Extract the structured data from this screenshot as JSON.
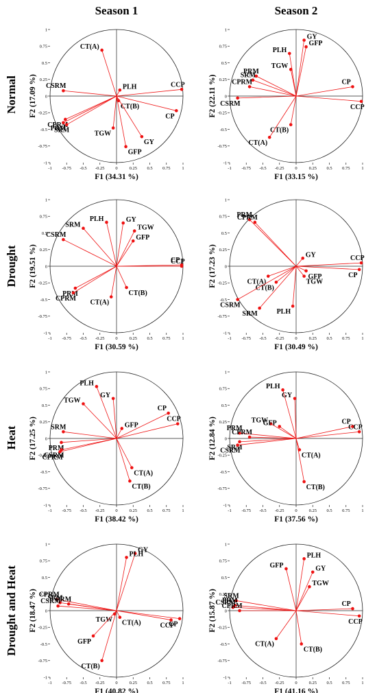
{
  "columns": [
    "Season 1",
    "Season 2"
  ],
  "rows": [
    "Normal",
    "Drought",
    "Heat",
    "Drought and Heat"
  ],
  "colors": {
    "vector": "#ee1111",
    "axis": "#222222"
  },
  "ticks": [
    "-1",
    "-0.75",
    "-0.5",
    "-0.25",
    "0",
    "0.25",
    "0.5",
    "0.75",
    "1"
  ],
  "chart_data": [
    {
      "type": "scatter",
      "row": "Normal",
      "season": "Season 1",
      "xlabel": "F1 (34.31 %)",
      "ylabel": "F2 (17.09 %)",
      "xlim": [
        -1,
        1
      ],
      "ylim": [
        -1,
        1
      ],
      "points": [
        {
          "label": "CT(A)",
          "x": -0.22,
          "y": 0.69
        },
        {
          "label": "PLH",
          "x": 0.05,
          "y": 0.09
        },
        {
          "label": "CCP",
          "x": 0.98,
          "y": 0.1
        },
        {
          "label": "CSRM",
          "x": -0.8,
          "y": 0.08
        },
        {
          "label": "CT(B)",
          "x": 0.03,
          "y": -0.07
        },
        {
          "label": "CP",
          "x": 0.9,
          "y": -0.22
        },
        {
          "label": "CPRM",
          "x": -0.77,
          "y": -0.35
        },
        {
          "label": "PRM",
          "x": -0.8,
          "y": -0.4
        },
        {
          "label": "SRM",
          "x": -0.75,
          "y": -0.43
        },
        {
          "label": "TGW",
          "x": -0.05,
          "y": -0.48
        },
        {
          "label": "GY",
          "x": 0.38,
          "y": -0.61
        },
        {
          "label": "GFP",
          "x": 0.14,
          "y": -0.76
        }
      ]
    },
    {
      "type": "scatter",
      "row": "Normal",
      "season": "Season 2",
      "xlabel": "F1 (33.15 %)",
      "ylabel": "F2 (22.11 %)",
      "xlim": [
        -1,
        1
      ],
      "ylim": [
        -1,
        1
      ],
      "points": [
        {
          "label": "GY",
          "x": 0.12,
          "y": 0.84
        },
        {
          "label": "GFP",
          "x": 0.15,
          "y": 0.74
        },
        {
          "label": "PLH",
          "x": -0.1,
          "y": 0.64
        },
        {
          "label": "TGW",
          "x": -0.08,
          "y": 0.4
        },
        {
          "label": "PRM",
          "x": -0.6,
          "y": 0.3
        },
        {
          "label": "SRM",
          "x": -0.65,
          "y": 0.24
        },
        {
          "label": "CPRM",
          "x": -0.7,
          "y": 0.14
        },
        {
          "label": "CSRM",
          "x": -0.88,
          "y": -0.03
        },
        {
          "label": "CP",
          "x": 0.85,
          "y": 0.14
        },
        {
          "label": "CCP",
          "x": 0.98,
          "y": -0.08
        },
        {
          "label": "CT(B)",
          "x": -0.08,
          "y": -0.43
        },
        {
          "label": "CT(A)",
          "x": -0.4,
          "y": -0.62
        }
      ]
    },
    {
      "type": "scatter",
      "row": "Drought",
      "season": "Season 1",
      "xlabel": "F1 (30.59 %)",
      "ylabel": "F2 (19.51 %)",
      "xlim": [
        -1,
        1
      ],
      "ylim": [
        -1,
        1
      ],
      "points": [
        {
          "label": "PLH",
          "x": -0.15,
          "y": 0.66
        },
        {
          "label": "GY",
          "x": 0.1,
          "y": 0.65
        },
        {
          "label": "SRM",
          "x": -0.5,
          "y": 0.57
        },
        {
          "label": "TGW",
          "x": 0.27,
          "y": 0.53
        },
        {
          "label": "CSRM",
          "x": -0.8,
          "y": 0.4
        },
        {
          "label": "GFP",
          "x": 0.25,
          "y": 0.38
        },
        {
          "label": "CP",
          "x": 0.98,
          "y": 0.02
        },
        {
          "label": "CCP",
          "x": 0.98,
          "y": 0.0
        },
        {
          "label": "PRM",
          "x": -0.62,
          "y": -0.33
        },
        {
          "label": "CPRM",
          "x": -0.65,
          "y": -0.4
        },
        {
          "label": "CT(B)",
          "x": 0.15,
          "y": -0.32
        },
        {
          "label": "CT(A)",
          "x": -0.08,
          "y": -0.46
        }
      ]
    },
    {
      "type": "scatter",
      "row": "Drought",
      "season": "Season 2",
      "xlabel": "F1 (30.49 %)",
      "ylabel": "F2 (17.23 %)",
      "xlim": [
        -1,
        1
      ],
      "ylim": [
        -1,
        1
      ],
      "points": [
        {
          "label": "PRM",
          "x": -0.7,
          "y": 0.7
        },
        {
          "label": "CPRM",
          "x": -0.62,
          "y": 0.66
        },
        {
          "label": "GY",
          "x": 0.1,
          "y": 0.12
        },
        {
          "label": "CCP",
          "x": 0.98,
          "y": 0.05
        },
        {
          "label": "CP",
          "x": 0.95,
          "y": -0.05
        },
        {
          "label": "CT(A)",
          "x": -0.42,
          "y": -0.15
        },
        {
          "label": "CT(B)",
          "x": -0.3,
          "y": -0.24
        },
        {
          "label": "GFP",
          "x": 0.15,
          "y": -0.07
        },
        {
          "label": "TGW",
          "x": 0.12,
          "y": -0.15
        },
        {
          "label": "CSRM",
          "x": -0.88,
          "y": -0.5
        },
        {
          "label": "SRM",
          "x": -0.55,
          "y": -0.63
        },
        {
          "label": "PLH",
          "x": -0.05,
          "y": -0.6
        }
      ]
    },
    {
      "type": "scatter",
      "row": "Heat",
      "season": "Season 1",
      "xlabel": "F1 (38.42 %)",
      "ylabel": "F2 (17.25 %)",
      "xlim": [
        -1,
        1
      ],
      "ylim": [
        -1,
        1
      ],
      "points": [
        {
          "label": "PLH",
          "x": -0.3,
          "y": 0.78
        },
        {
          "label": "TGW",
          "x": -0.5,
          "y": 0.52
        },
        {
          "label": "GY",
          "x": -0.05,
          "y": 0.6
        },
        {
          "label": "CP",
          "x": 0.78,
          "y": 0.38
        },
        {
          "label": "CCP",
          "x": 0.92,
          "y": 0.22
        },
        {
          "label": "GFP",
          "x": 0.08,
          "y": 0.15
        },
        {
          "label": "SRM",
          "x": -0.8,
          "y": 0.1
        },
        {
          "label": "PRM",
          "x": -0.83,
          "y": -0.06
        },
        {
          "label": "CSRM",
          "x": -0.83,
          "y": -0.17
        },
        {
          "label": "CPRM",
          "x": -0.85,
          "y": -0.2
        },
        {
          "label": "CT(A)",
          "x": 0.23,
          "y": -0.44
        },
        {
          "label": "CT(B)",
          "x": 0.2,
          "y": -0.64
        }
      ]
    },
    {
      "type": "scatter",
      "row": "Heat",
      "season": "Season 2",
      "xlabel": "F1 (37.56 %)",
      "ylabel": "F2 (12.84 %)",
      "xlim": [
        -1,
        1
      ],
      "ylim": [
        -1,
        1
      ],
      "points": [
        {
          "label": "PLH",
          "x": -0.2,
          "y": 0.73
        },
        {
          "label": "GY",
          "x": -0.02,
          "y": 0.6
        },
        {
          "label": "TGW",
          "x": -0.38,
          "y": 0.22
        },
        {
          "label": "GFP",
          "x": -0.25,
          "y": 0.18
        },
        {
          "label": "PRM",
          "x": -0.85,
          "y": 0.08
        },
        {
          "label": "CPRM",
          "x": -0.7,
          "y": 0.02
        },
        {
          "label": "SRM",
          "x": -0.85,
          "y": -0.05
        },
        {
          "label": "CSRM",
          "x": -0.88,
          "y": -0.1
        },
        {
          "label": "CP",
          "x": 0.85,
          "y": 0.18
        },
        {
          "label": "CCP",
          "x": 0.95,
          "y": 0.1
        },
        {
          "label": "CT(A)",
          "x": 0.05,
          "y": -0.17
        },
        {
          "label": "CT(B)",
          "x": 0.12,
          "y": -0.65
        }
      ]
    },
    {
      "type": "scatter",
      "row": "Drought and Heat",
      "season": "Season 1",
      "xlabel": "F1 (40.82 %)",
      "ylabel": "F2 (18.47 %)",
      "xlim": [
        -1,
        1
      ],
      "ylim": [
        -1,
        1
      ],
      "points": [
        {
          "label": "GY",
          "x": 0.28,
          "y": 0.86
        },
        {
          "label": "PLH",
          "x": 0.15,
          "y": 0.8
        },
        {
          "label": "CPRM",
          "x": -0.9,
          "y": 0.17
        },
        {
          "label": "PRM",
          "x": -0.72,
          "y": 0.1
        },
        {
          "label": "SRM",
          "x": -0.85,
          "y": 0.12
        },
        {
          "label": "CSRM",
          "x": -0.88,
          "y": 0.07
        },
        {
          "label": "TGW",
          "x": -0.03,
          "y": -0.05
        },
        {
          "label": "CT(A)",
          "x": 0.05,
          "y": -0.1
        },
        {
          "label": "CP",
          "x": 0.95,
          "y": -0.12
        },
        {
          "label": "CCP",
          "x": 0.82,
          "y": -0.14
        },
        {
          "label": "GFP",
          "x": -0.35,
          "y": -0.38
        },
        {
          "label": "CT(B)",
          "x": -0.22,
          "y": -0.75
        }
      ]
    },
    {
      "type": "scatter",
      "row": "Drought and Heat",
      "season": "Season 2",
      "xlabel": "F1 (41.16 %)",
      "ylabel": "F2 (15.87 %)",
      "xlim": [
        -1,
        1
      ],
      "ylim": [
        -1,
        1
      ],
      "points": [
        {
          "label": "PLH",
          "x": 0.12,
          "y": 0.78
        },
        {
          "label": "GFP",
          "x": -0.15,
          "y": 0.63
        },
        {
          "label": "GY",
          "x": 0.25,
          "y": 0.58
        },
        {
          "label": "TGW",
          "x": 0.2,
          "y": 0.36
        },
        {
          "label": "SRM",
          "x": -0.9,
          "y": 0.15
        },
        {
          "label": "PRM",
          "x": -0.92,
          "y": 0.08
        },
        {
          "label": "CSRM",
          "x": -0.95,
          "y": 0.05
        },
        {
          "label": "CPRM",
          "x": -0.85,
          "y": 0.0
        },
        {
          "label": "CP",
          "x": 0.85,
          "y": 0.03
        },
        {
          "label": "CCP",
          "x": 0.95,
          "y": -0.08
        },
        {
          "label": "CT(A)",
          "x": -0.3,
          "y": -0.42
        },
        {
          "label": "CT(B)",
          "x": 0.08,
          "y": -0.5
        }
      ]
    }
  ]
}
